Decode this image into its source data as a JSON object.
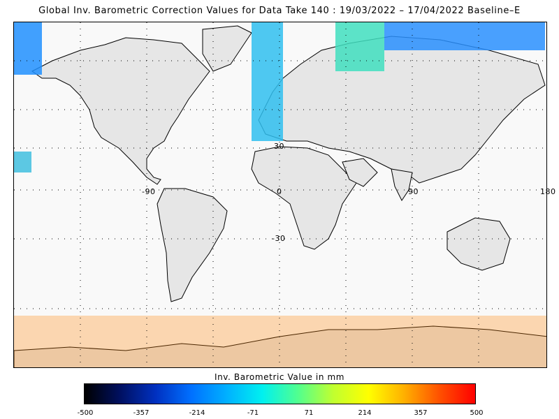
{
  "title": "Global Inv. Barometric Correction Values for Data Take 140 : 19/03/2022 – 17/04/2022 Baseline–E",
  "map": {
    "land_color": "#e6e6e6",
    "ocean_color": "#f9f9f9",
    "grid": true,
    "lon_labels": [
      "-90",
      "0",
      "90",
      "180"
    ],
    "lat_labels": [
      "30",
      "-30"
    ]
  },
  "colorbar": {
    "title": "Inv. Barometric Value in mm",
    "ticks": [
      "-500",
      "-357",
      "-214",
      "-71",
      "71",
      "214",
      "357",
      "500"
    ],
    "range": [
      -500,
      500
    ],
    "colors": [
      "#000000",
      "#001060",
      "#0030c0",
      "#0070ff",
      "#00b0ff",
      "#00f0f0",
      "#50ff90",
      "#c0ff30",
      "#ffff00",
      "#ffb000",
      "#ff5000",
      "#ff0000"
    ]
  }
}
